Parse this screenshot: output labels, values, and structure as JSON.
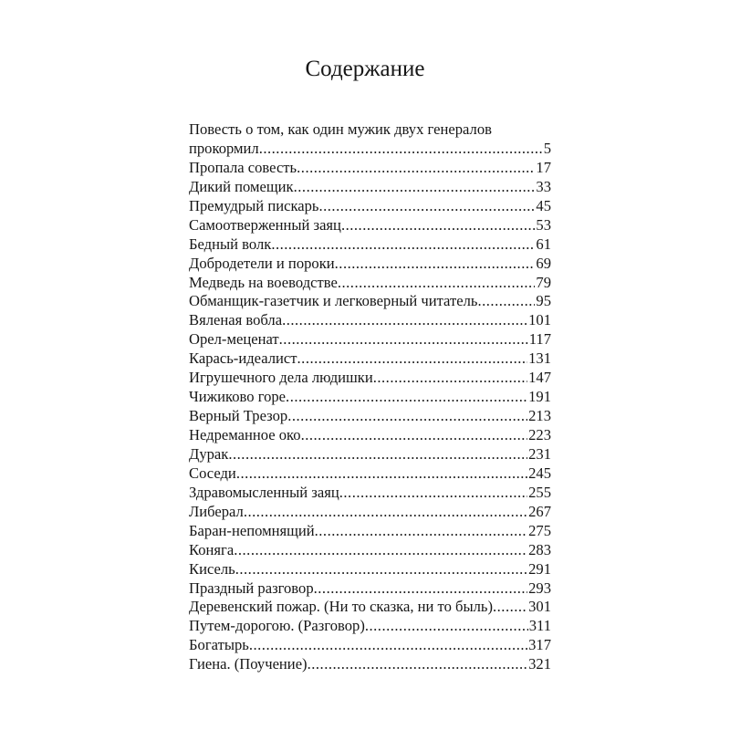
{
  "title": "Содержание",
  "entries": [
    {
      "title_line1": "Повесть о том, как один мужик двух генералов",
      "title": "прокормил",
      "page": "5"
    },
    {
      "title": "Пропала совесть",
      "page": "17"
    },
    {
      "title": "Дикий помещик",
      "page": "33"
    },
    {
      "title": "Премудрый пискарь",
      "page": "45"
    },
    {
      "title": "Самоотверженный заяц",
      "page": "53"
    },
    {
      "title": "Бедный волк",
      "page": "61"
    },
    {
      "title": "Добродетели и пороки",
      "page": "69"
    },
    {
      "title": "Медведь на воеводстве",
      "page": "79"
    },
    {
      "title": "Обманщик-газетчик и легковерный читатель",
      "page": "95"
    },
    {
      "title": "Вяленая вобла",
      "page": "101"
    },
    {
      "title": "Орел-меценат",
      "page": "117"
    },
    {
      "title": "Карась-идеалист",
      "page": "131"
    },
    {
      "title": "Игрушечного дела людишки",
      "page": "147"
    },
    {
      "title": "Чижиково горе",
      "page": "191"
    },
    {
      "title": "Верный Трезор",
      "page": "213"
    },
    {
      "title": "Недреманное око",
      "page": "223"
    },
    {
      "title": "Дурак",
      "page": "231"
    },
    {
      "title": "Соседи",
      "page": "245"
    },
    {
      "title": "Здравомысленный заяц",
      "page": "255"
    },
    {
      "title": "Либерал",
      "page": "267"
    },
    {
      "title": "Баран-непомнящий",
      "page": "275"
    },
    {
      "title": "Коняга",
      "page": "283"
    },
    {
      "title": "Кисель",
      "page": "291"
    },
    {
      "title": "Праздный разговор",
      "page": "293"
    },
    {
      "title": "Деревенский пожар. (Ни то сказка, ни то быль)",
      "page": "301"
    },
    {
      "title": "Путем-дорогою. (Разговор)",
      "page": "311"
    },
    {
      "title": "Богатырь",
      "page": "317"
    },
    {
      "title": "Гиена. (Поучение)",
      "page": "321"
    }
  ]
}
